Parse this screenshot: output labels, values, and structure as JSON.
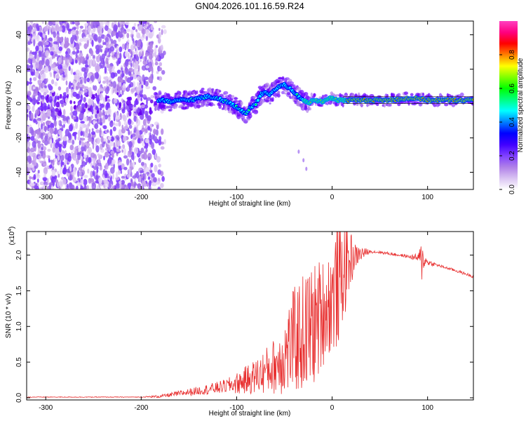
{
  "figure": {
    "title": "GN04.2026.101.16.59.R24"
  },
  "chart_data": [
    {
      "type": "heatmap",
      "title": "GN04.2026.101.16.59.R24",
      "xlabel": "Height of straight line (km)",
      "ylabel": "Frequency (Hz)",
      "xlim": [
        -320,
        148
      ],
      "ylim": [
        -50,
        48
      ],
      "x_ticks": [
        -300,
        -200,
        -100,
        0,
        100
      ],
      "x_tick_labels": [
        "-300",
        "-200",
        "-100",
        "0",
        "100"
      ],
      "y_ticks": [
        -40,
        -20,
        0,
        20,
        40
      ],
      "y_tick_labels": [
        "-40",
        "-20",
        "0",
        "20",
        "40"
      ],
      "colorbar": {
        "label": "Normalized spectral amplitude",
        "range": [
          0,
          1
        ],
        "ticks": [
          0.0,
          0.2,
          0.4,
          0.6,
          0.8
        ],
        "tick_labels": [
          "0.0",
          "0.2",
          "0.4",
          "0.6",
          "0.8"
        ],
        "colors": [
          "#ffffff",
          "#d9c2f2",
          "#b080e8",
          "#8040ff",
          "#4000ff",
          "#0000ff",
          "#0080ff",
          "#00ffff",
          "#00ff80",
          "#00ff00",
          "#80ff00",
          "#ffff00",
          "#ff8000",
          "#ff0000",
          "#ff0080",
          "#ff40c0"
        ]
      },
      "track": [
        [
          -180,
          2
        ],
        [
          -170,
          1
        ],
        [
          -160,
          2
        ],
        [
          -150,
          2
        ],
        [
          -140,
          3
        ],
        [
          -130,
          4
        ],
        [
          -120,
          3
        ],
        [
          -110,
          1
        ],
        [
          -100,
          -2
        ],
        [
          -95,
          -4
        ],
        [
          -90,
          -6
        ],
        [
          -85,
          -2
        ],
        [
          -80,
          0
        ],
        [
          -75,
          5
        ],
        [
          -70,
          7
        ],
        [
          -65,
          5
        ],
        [
          -60,
          8
        ],
        [
          -55,
          10
        ],
        [
          -50,
          11
        ],
        [
          -45,
          9
        ],
        [
          -40,
          6
        ],
        [
          -35,
          4
        ],
        [
          -30,
          2
        ],
        [
          -25,
          0
        ],
        [
          -20,
          2
        ],
        [
          -10,
          1
        ],
        [
          -5,
          3
        ],
        [
          0,
          3
        ],
        [
          5,
          2
        ],
        [
          10,
          2
        ],
        [
          20,
          2
        ],
        [
          40,
          2
        ],
        [
          60,
          2
        ],
        [
          80,
          3
        ],
        [
          90,
          3
        ],
        [
          100,
          2
        ],
        [
          110,
          2
        ],
        [
          148,
          2
        ]
      ],
      "tail": [
        [
          -35,
          -28
        ],
        [
          -30,
          -33
        ],
        [
          -27,
          -38
        ]
      ],
      "noise_region_x": [
        -320,
        -175
      ]
    },
    {
      "type": "line",
      "xlabel": "Height of straight line (km)",
      "ylabel": "SNR (10 * v/v)",
      "scale_label": "(x10",
      "scale_exponent": "4",
      "xlim": [
        -320,
        148
      ],
      "ylim": [
        -0.03,
        2.33
      ],
      "x_ticks": [
        -300,
        -200,
        -100,
        0,
        100
      ],
      "x_tick_labels": [
        "-300",
        "-200",
        "-100",
        "0",
        "100"
      ],
      "y_ticks": [
        0.0,
        0.5,
        1.0,
        1.5,
        2.0
      ],
      "y_tick_labels": [
        "0.0",
        "0.5",
        "1.0",
        "1.5",
        "2.0"
      ],
      "series": [
        {
          "name": "SNR",
          "color": "#e83030",
          "x": [
            -320,
            -250,
            -200,
            -180,
            -160,
            -140,
            -120,
            -100,
            -80,
            -60,
            -50,
            -40,
            -30,
            -20,
            -10,
            0,
            5,
            10,
            15,
            20,
            30,
            40,
            50,
            60,
            70,
            80,
            90,
            94,
            96,
            100,
            110,
            120,
            130,
            148
          ],
          "y": [
            0.01,
            0.01,
            0.01,
            0.02,
            0.06,
            0.1,
            0.14,
            0.2,
            0.3,
            0.45,
            0.6,
            0.8,
            0.9,
            1.0,
            1.2,
            1.4,
            1.55,
            1.7,
            1.85,
            1.95,
            2.02,
            2.05,
            2.04,
            2.02,
            2.0,
            1.98,
            1.96,
            1.92,
            1.95,
            1.9,
            1.86,
            1.82,
            1.78,
            1.7
          ]
        }
      ],
      "noise_amplitude": [
        [
          -320,
          0.005
        ],
        [
          -200,
          0.005
        ],
        [
          -170,
          0.03
        ],
        [
          -140,
          0.06
        ],
        [
          -110,
          0.1
        ],
        [
          -80,
          0.25
        ],
        [
          -60,
          0.4
        ],
        [
          -40,
          0.75
        ],
        [
          -25,
          0.9
        ],
        [
          -15,
          0.85
        ],
        [
          -5,
          0.7
        ],
        [
          5,
          0.9
        ],
        [
          15,
          0.6
        ],
        [
          25,
          0.15
        ],
        [
          40,
          0.02
        ],
        [
          80,
          0.02
        ],
        [
          90,
          0.06
        ],
        [
          94,
          0.3
        ],
        [
          98,
          0.05
        ],
        [
          110,
          0.02
        ],
        [
          148,
          0.02
        ]
      ]
    }
  ]
}
